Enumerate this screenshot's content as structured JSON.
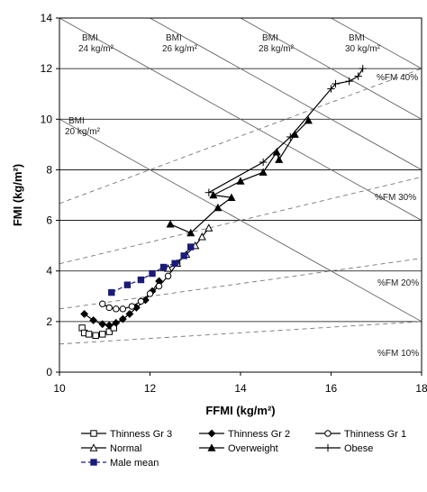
{
  "chart_data": {
    "type": "line",
    "xlabel": "FFMI (kg/m²)",
    "ylabel": "FMI (kg/m²)",
    "xlim": [
      10,
      18
    ],
    "ylim": [
      0,
      14
    ],
    "x_ticks": [
      "10",
      "12",
      "14",
      "16",
      "18"
    ],
    "y_ticks": [
      "0",
      "2",
      "4",
      "6",
      "8",
      "10",
      "12",
      "14"
    ],
    "grid": true,
    "legend_position": "bottom",
    "bmi_isolines": [
      {
        "label_line1": "BMI",
        "label_line2": "20 kg/m²",
        "value": 20
      },
      {
        "label_line1": "BMI",
        "label_line2": "24 kg/m²",
        "value": 24
      },
      {
        "label_line1": "BMI",
        "label_line2": "26 kg/m²",
        "value": 26
      },
      {
        "label_line1": "BMI",
        "label_line2": "28 kg/m²",
        "value": 28
      },
      {
        "label_line1": "BMI",
        "label_line2": "30 kg/m²",
        "value": 30
      }
    ],
    "fat_mass_lines": [
      {
        "label": "%FM 10%",
        "value": 10
      },
      {
        "label": "%FM 20%",
        "value": 20
      },
      {
        "label": "%FM 30%",
        "value": 30
      },
      {
        "label": "%FM 40%",
        "value": 40
      }
    ],
    "series": [
      {
        "name": "Thinness Gr 3",
        "marker": "square-open",
        "color": "#000000",
        "points": [
          [
            10.5,
            1.75
          ],
          [
            10.55,
            1.55
          ],
          [
            10.65,
            1.5
          ],
          [
            10.8,
            1.45
          ],
          [
            10.95,
            1.5
          ],
          [
            11.1,
            1.6
          ],
          [
            11.2,
            1.75
          ]
        ]
      },
      {
        "name": "Thinness Gr 2",
        "marker": "diamond-filled",
        "color": "#000000",
        "points": [
          [
            10.55,
            2.3
          ],
          [
            10.75,
            2.05
          ],
          [
            10.95,
            1.9
          ],
          [
            11.1,
            1.85
          ],
          [
            11.25,
            1.95
          ],
          [
            11.4,
            2.1
          ],
          [
            11.55,
            2.3
          ],
          [
            11.7,
            2.55
          ],
          [
            11.9,
            2.85
          ],
          [
            12.05,
            3.2
          ],
          [
            12.2,
            3.6
          ]
        ]
      },
      {
        "name": "Thinness Gr 1",
        "marker": "circle-open",
        "color": "#000000",
        "points": [
          [
            10.95,
            2.7
          ],
          [
            11.1,
            2.55
          ],
          [
            11.25,
            2.5
          ],
          [
            11.4,
            2.5
          ],
          [
            11.6,
            2.6
          ],
          [
            11.8,
            2.8
          ],
          [
            12.0,
            3.1
          ],
          [
            12.2,
            3.4
          ],
          [
            12.4,
            3.8
          ],
          [
            12.6,
            4.3
          ]
        ]
      },
      {
        "name": "Normal",
        "marker": "triangle-open",
        "color": "#000000",
        "points": [
          [
            12.4,
            4.1
          ],
          [
            12.6,
            4.3
          ],
          [
            12.8,
            4.65
          ],
          [
            13.0,
            5.0
          ],
          [
            13.15,
            5.35
          ],
          [
            13.3,
            5.7
          ]
        ]
      },
      {
        "name": "Overweight",
        "marker": "triangle-filled",
        "color": "#000000",
        "points": [
          [
            12.45,
            5.85
          ],
          [
            12.9,
            5.5
          ],
          [
            13.5,
            6.5
          ],
          [
            13.8,
            6.9
          ],
          [
            13.4,
            7.0
          ],
          [
            14.0,
            7.55
          ],
          [
            14.5,
            7.9
          ],
          [
            14.8,
            8.7
          ],
          [
            14.85,
            8.4
          ],
          [
            15.2,
            9.4
          ],
          [
            15.5,
            9.95
          ]
        ]
      },
      {
        "name": "Obese",
        "marker": "plus",
        "color": "#000000",
        "points": [
          [
            13.3,
            7.1
          ],
          [
            14.5,
            8.3
          ],
          [
            15.1,
            9.3
          ],
          [
            16.0,
            11.2
          ],
          [
            16.1,
            11.4
          ],
          [
            16.4,
            11.5
          ],
          [
            16.6,
            11.7
          ],
          [
            16.7,
            12.0
          ]
        ]
      },
      {
        "name": "Male mean",
        "marker": "square-filled",
        "color": "#1a1a7a",
        "dashed": true,
        "points": [
          [
            11.15,
            3.15
          ],
          [
            11.5,
            3.45
          ],
          [
            11.8,
            3.65
          ],
          [
            12.05,
            3.9
          ],
          [
            12.3,
            4.15
          ],
          [
            12.55,
            4.3
          ],
          [
            12.75,
            4.6
          ],
          [
            12.9,
            4.95
          ]
        ]
      }
    ]
  }
}
